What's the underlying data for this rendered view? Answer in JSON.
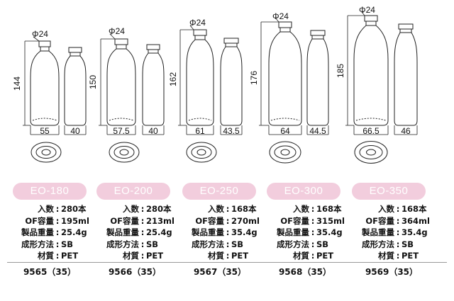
{
  "bottles": [
    {
      "cap_dim": "Φ24",
      "height_dim": "144",
      "width_dim": "55",
      "depth_dim": "40",
      "model": "EO-180",
      "specs": [
        {
          "key": "入数",
          "value": "280本"
        },
        {
          "key": "OF容量",
          "value": "195ml"
        },
        {
          "key": "製品重量",
          "value": "25.4g"
        },
        {
          "key": "成形方法",
          "value": "SB"
        },
        {
          "key": "材質",
          "value": "PET"
        }
      ],
      "code": "9565（35）"
    },
    {
      "cap_dim": "Φ24",
      "height_dim": "150",
      "width_dim": "57.5",
      "depth_dim": "40",
      "model": "EO-200",
      "specs": [
        {
          "key": "入数",
          "value": "280本"
        },
        {
          "key": "OF容量",
          "value": "213ml"
        },
        {
          "key": "製品重量",
          "value": "25.4g"
        },
        {
          "key": "成形方法",
          "value": "SB"
        },
        {
          "key": "材質",
          "value": "PET"
        }
      ],
      "code": "9566（35）"
    },
    {
      "cap_dim": "Φ24",
      "height_dim": "162",
      "width_dim": "61",
      "depth_dim": "43.5",
      "model": "EO-250",
      "specs": [
        {
          "key": "入数",
          "value": "168本"
        },
        {
          "key": "OF容量",
          "value": "270ml"
        },
        {
          "key": "製品重量",
          "value": "35.4g"
        },
        {
          "key": "成形方法",
          "value": "SB"
        },
        {
          "key": "材質",
          "value": "PET"
        }
      ],
      "code": "9567（35）"
    },
    {
      "cap_dim": "Φ24",
      "height_dim": "176",
      "width_dim": "64",
      "depth_dim": "44.5",
      "model": "EO-300",
      "specs": [
        {
          "key": "入数",
          "value": "168本"
        },
        {
          "key": "OF容量",
          "value": "315ml"
        },
        {
          "key": "製品重量",
          "value": "35.4g"
        },
        {
          "key": "成形方法",
          "value": "SB"
        },
        {
          "key": "材質",
          "value": "PET"
        }
      ],
      "code": "9568（35）"
    },
    {
      "cap_dim": "Φ24",
      "height_dim": "185",
      "width_dim": "66.5",
      "depth_dim": "46",
      "model": "EO-350",
      "specs": [
        {
          "key": "入数",
          "value": "168本"
        },
        {
          "key": "OF容量",
          "value": "364ml"
        },
        {
          "key": "製品重量",
          "value": "35.4g"
        },
        {
          "key": "成形方法",
          "value": "SB"
        },
        {
          "key": "材質",
          "value": "PET"
        }
      ],
      "code": "9569（35）"
    }
  ],
  "colors": {
    "badge": "#f2cddd",
    "badge_text": "#ffffff",
    "line": "#222222"
  }
}
